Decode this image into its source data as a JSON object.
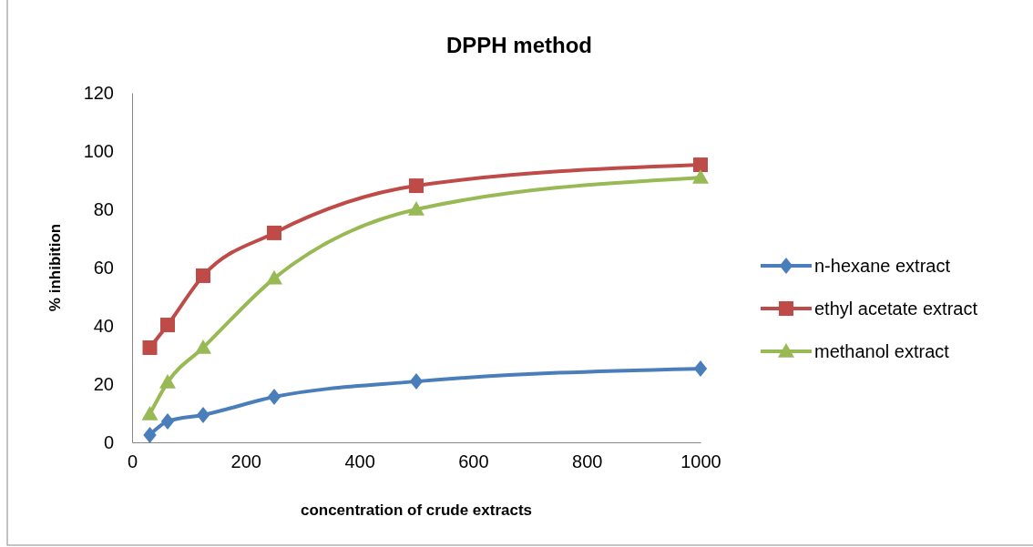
{
  "chart_data": {
    "type": "line",
    "title": "DPPH method",
    "xlabel": "concentration of crude extracts",
    "ylabel": "% inhibition",
    "x": [
      31.25,
      62.5,
      125,
      250,
      500,
      1000
    ],
    "xlim": [
      0,
      1000
    ],
    "xticks": [
      0,
      200,
      400,
      600,
      800,
      1000
    ],
    "ylim": [
      0,
      120
    ],
    "yticks": [
      0,
      20,
      40,
      60,
      80,
      100,
      120
    ],
    "legend": "right",
    "grid": false,
    "series": [
      {
        "name": "n-hexane extract",
        "color": "#4a7ebb",
        "marker": "diamond",
        "values": [
          2.5,
          7.2,
          9.4,
          15.6,
          20.9,
          25.3
        ]
      },
      {
        "name": "ethyl acetate extract",
        "color": "#be4b48",
        "marker": "square",
        "values": [
          32.5,
          40.3,
          57.2,
          71.9,
          88.1,
          95.3
        ]
      },
      {
        "name": "methanol extract",
        "color": "#98b954",
        "marker": "triangle",
        "values": [
          9.7,
          20.6,
          32.5,
          56.3,
          80,
          90.9
        ]
      }
    ]
  }
}
